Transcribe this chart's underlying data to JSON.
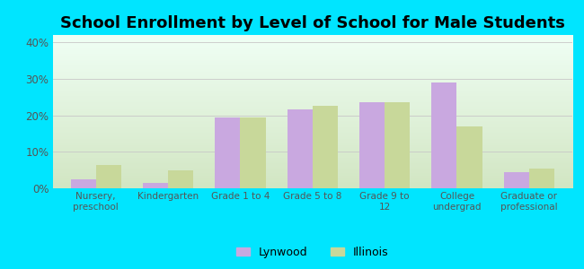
{
  "title": "School Enrollment by Level of School for Male Students",
  "categories": [
    "Nursery,\npreschool",
    "Kindergarten",
    "Grade 1 to 4",
    "Grade 5 to 8",
    "Grade 9 to\n12",
    "College\nundergrad",
    "Graduate or\nprofessional"
  ],
  "lynwood_values": [
    2.5,
    1.5,
    19.5,
    21.5,
    23.5,
    29.0,
    4.5
  ],
  "illinois_values": [
    6.5,
    5.0,
    19.5,
    22.5,
    23.5,
    17.0,
    5.5
  ],
  "lynwood_color": "#c9a8e0",
  "illinois_color": "#c8d89a",
  "background_outer": "#00e5ff",
  "ylim": [
    0,
    42
  ],
  "yticks": [
    0,
    10,
    20,
    30,
    40
  ],
  "ytick_labels": [
    "0%",
    "10%",
    "20%",
    "30%",
    "40%"
  ],
  "legend_labels": [
    "Lynwood",
    "Illinois"
  ],
  "title_fontsize": 13,
  "bar_width": 0.35,
  "grid_color": "#c8c8c8"
}
